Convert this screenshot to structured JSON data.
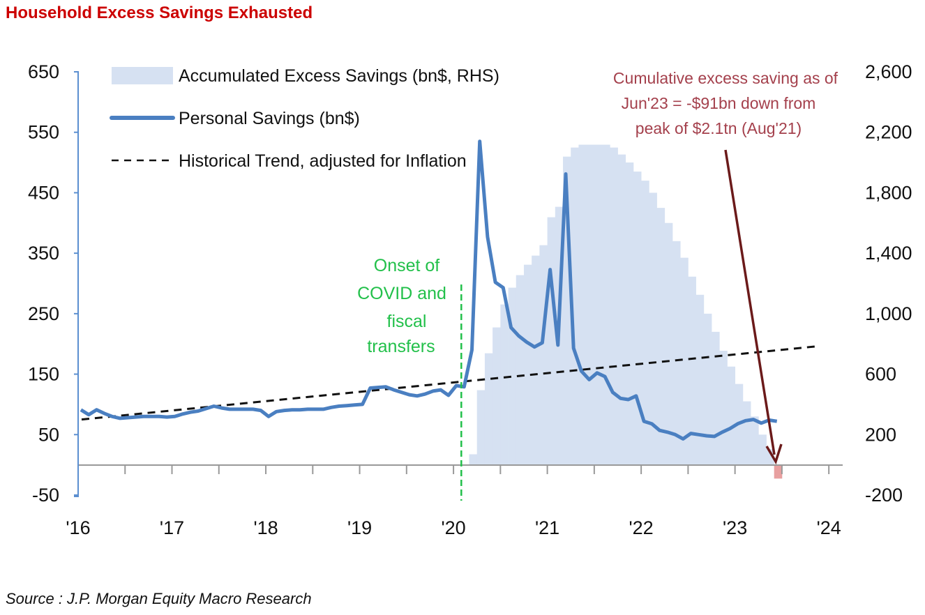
{
  "chart_data": {
    "type": "line",
    "title": "Household Excess Savings Exhausted",
    "source": "Source : J.P. Morgan Equity Macro Research",
    "x_axis": {
      "type": "date",
      "range": [
        "2016-01",
        "2024-01"
      ],
      "tick_labels": [
        "'16",
        "'17",
        "'18",
        "'19",
        "'20",
        "'21",
        "'22",
        "'23",
        "'24"
      ]
    },
    "y_left": {
      "range": [
        -50,
        650
      ],
      "tick_labels": [
        "650",
        "550",
        "450",
        "350",
        "250",
        "150",
        "50",
        "-50"
      ]
    },
    "y_right": {
      "range": [
        -200,
        2600
      ],
      "tick_labels": [
        "2,600",
        "2,200",
        "1,800",
        "1,400",
        "1,000",
        "600",
        "200",
        "-200"
      ]
    },
    "grid": false,
    "legend_position": "top-left",
    "series": [
      {
        "name": "Accumulated Excess Savings (bn$, RHS)",
        "type": "area",
        "axis": "right",
        "color": "#d6e1f2",
        "negative_color": "#e8a0a0",
        "start": "2020-03",
        "frequency": "monthly",
        "values": [
          70,
          494,
          738,
          909,
          1061,
          1172,
          1255,
          1324,
          1384,
          1453,
          1638,
          1707,
          2039,
          2099,
          2118,
          2118,
          2118,
          2118,
          2099,
          2053,
          2000,
          1940,
          1880,
          1800,
          1700,
          1600,
          1480,
          1370,
          1245,
          1125,
          1000,
          880,
          755,
          650,
          535,
          420,
          320,
          200,
          105,
          -91
        ]
      },
      {
        "name": "Personal Savings (bn$)",
        "type": "line",
        "axis": "left",
        "color": "#4a7fc1",
        "start": "2016-01",
        "frequency": "monthly",
        "values": [
          91,
          83,
          91,
          85,
          80,
          77,
          78,
          79,
          80,
          80,
          80,
          79,
          80,
          84,
          87,
          89,
          93,
          97,
          94,
          92,
          92,
          92,
          92,
          90,
          80,
          88,
          90,
          91,
          91,
          92,
          92,
          92,
          95,
          97,
          98,
          99,
          100,
          127,
          128,
          129,
          124,
          120,
          116,
          114,
          117,
          122,
          124,
          115,
          131,
          129,
          190,
          535,
          377,
          302,
          293,
          227,
          213,
          203,
          195,
          202,
          323,
          198,
          481,
          193,
          155,
          141,
          152,
          146,
          120,
          110,
          108,
          114,
          72,
          68,
          57,
          54,
          50,
          43,
          52,
          50,
          48,
          47,
          54,
          60,
          68,
          73,
          75,
          69,
          74,
          72
        ]
      },
      {
        "name": "Historical Trend, adjusted for Inflation",
        "type": "line",
        "style": "dashed",
        "axis": "left",
        "color": "#111111",
        "points": [
          {
            "x": "2016-01",
            "y": 75
          },
          {
            "x": "2023-11",
            "y": 196
          }
        ]
      }
    ],
    "annotations": [
      {
        "text": [
          "Onset of",
          "COVID and",
          "fiscal",
          "transfers"
        ],
        "color": "#22c04a",
        "marker_date": "2020-02",
        "marker": "vertical dashed line"
      },
      {
        "text": [
          "Cumulative excess saving as of",
          "Jun'23 = -$91bn down from",
          "peak of $2.1tn (Aug'21)"
        ],
        "color": "#a4404c",
        "arrow_to": "2023-06",
        "arrow_color": "#6b1a1a"
      }
    ]
  }
}
